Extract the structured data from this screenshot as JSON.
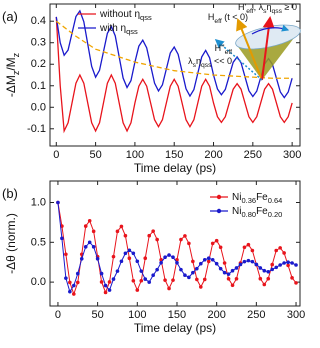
{
  "chart_data": [
    {
      "type": "line",
      "panel_label": "(a)",
      "xlabel": "Time delay (ps)",
      "ylabel": "-ΔMz/Mz",
      "xlim": [
        -8,
        310
      ],
      "ylim": [
        -0.18,
        0.48
      ],
      "xticks": [
        0,
        50,
        100,
        150,
        200,
        250,
        300
      ],
      "yticks": [
        -0.1,
        {
          "value": 0,
          "label": "0.0"
        },
        0.1,
        0.2,
        0.3,
        0.4
      ],
      "legend": "upper center",
      "markers": false,
      "x": [
        0,
        5,
        10,
        15,
        20,
        25,
        30,
        35,
        40,
        45,
        50,
        55,
        60,
        65,
        70,
        75,
        80,
        85,
        90,
        95,
        100,
        105,
        110,
        115,
        120,
        125,
        130,
        135,
        140,
        145,
        150,
        155,
        160,
        165,
        170,
        175,
        180,
        185,
        190,
        195,
        200,
        205,
        210,
        215,
        220,
        225,
        230,
        235,
        240,
        245,
        250,
        255,
        260,
        265,
        270,
        275,
        280,
        285,
        290,
        295,
        300
      ],
      "series": [
        {
          "name": "without ηqss",
          "color": "#e8141c",
          "values": [
            0.42,
            0.1,
            -0.11,
            -0.072,
            0.02,
            0.112,
            0.15,
            0.112,
            0.02,
            -0.072,
            -0.11,
            -0.072,
            0.02,
            0.112,
            0.15,
            0.112,
            0.02,
            -0.072,
            -0.11,
            -0.072,
            0.02,
            0.098,
            0.13,
            0.098,
            0.02,
            -0.058,
            -0.09,
            -0.058,
            0.02,
            0.098,
            0.13,
            0.098,
            0.02,
            -0.058,
            -0.09,
            -0.058,
            0.02,
            0.098,
            0.13,
            0.098,
            0.02,
            -0.044,
            -0.07,
            -0.044,
            0.02,
            0.084,
            0.11,
            0.084,
            0.02,
            -0.044,
            -0.07,
            -0.044,
            0.02,
            0.084,
            0.11,
            0.084,
            0.02,
            -0.044,
            -0.07,
            -0.044,
            0.02
          ]
        },
        {
          "name": "with ηqss",
          "color": "#1a1acc",
          "values": [
            0.42,
            0.3,
            0.242,
            0.266,
            0.344,
            0.422,
            0.448,
            0.398,
            0.294,
            0.19,
            0.14,
            0.172,
            0.258,
            0.344,
            0.376,
            0.332,
            0.234,
            0.136,
            0.092,
            0.124,
            0.21,
            0.284,
            0.312,
            0.276,
            0.194,
            0.112,
            0.076,
            0.104,
            0.178,
            0.252,
            0.28,
            0.246,
            0.166,
            0.086,
            0.052,
            0.082,
            0.158,
            0.234,
            0.264,
            0.23,
            0.15,
            0.085,
            0.058,
            0.083,
            0.146,
            0.209,
            0.234,
            0.207,
            0.142,
            0.077,
            0.05,
            0.075,
            0.138,
            0.201,
            0.226,
            0.199,
            0.135,
            0.071,
            0.045,
            0.071,
            0.135
          ]
        },
        {
          "color": "#f0a500",
          "dashed": true,
          "x": [
            0,
            25,
            50,
            75,
            100,
            125,
            150,
            175,
            200,
            225,
            250,
            275,
            300
          ],
          "values": [
            0.4,
            0.33,
            0.27,
            0.24,
            0.21,
            0.19,
            0.17,
            0.16,
            0.15,
            0.145,
            0.14,
            0.135,
            0.135
          ]
        }
      ],
      "annotations": [
        {
          "text": "Heff (t < 0)",
          "color": "#e39a00"
        },
        {
          "text": "H'eff, λsηqss ≥ 0",
          "color": "#e8141c"
        },
        {
          "text": "H''eff",
          "color": "#1e8fd0"
        },
        {
          "text": "λsηqss << 0",
          "color": "#1e8fd0"
        }
      ]
    },
    {
      "type": "line",
      "panel_label": "(b)",
      "xlabel": "Time delay (ps)",
      "ylabel": "-Δθ (norm.)",
      "xlim": [
        -10,
        305
      ],
      "ylim": [
        -0.3,
        1.27
      ],
      "xticks": [
        0,
        50,
        100,
        150,
        200,
        250,
        300
      ],
      "yticks": [
        {
          "value": 0,
          "label": "0.0"
        },
        0.5,
        {
          "value": 1,
          "label": "1.0"
        }
      ],
      "legend": "upper right",
      "markers": true,
      "x": [
        0,
        5,
        10,
        15,
        20,
        25,
        30,
        35,
        40,
        45,
        50,
        55,
        60,
        65,
        70,
        75,
        80,
        85,
        90,
        95,
        100,
        105,
        110,
        115,
        120,
        125,
        130,
        135,
        140,
        145,
        150,
        155,
        160,
        165,
        170,
        175,
        180,
        185,
        190,
        195,
        200,
        205,
        210,
        215,
        220,
        225,
        230,
        235,
        240,
        245,
        250,
        255,
        260,
        265,
        270,
        275,
        280,
        285,
        290,
        295,
        300
      ],
      "series": [
        {
          "name": "Ni0.36Fe0.64",
          "color": "#e8141c",
          "values": [
            1.0,
            0.704,
            0.35,
            -0.004,
            -0.15,
            -0.004,
            0.35,
            0.704,
            0.77,
            0.638,
            0.32,
            0.002,
            -0.13,
            0.002,
            0.32,
            0.638,
            0.7,
            0.583,
            0.3,
            0.017,
            -0.1,
            0.017,
            0.3,
            0.583,
            0.64,
            0.535,
            0.28,
            0.025,
            -0.08,
            0.025,
            0.28,
            0.535,
            0.58,
            0.486,
            0.26,
            0.034,
            -0.06,
            0.034,
            0.26,
            0.486,
            0.52,
            0.438,
            0.24,
            0.042,
            -0.04,
            0.042,
            0.24,
            0.438,
            0.47,
            0.397,
            0.22,
            0.043,
            -0.03,
            0.043,
            0.22,
            0.397,
            0.43,
            0.366,
            0.21,
            0.054,
            -0.01
          ]
        },
        {
          "name": "Ni0.80Fe0.20",
          "color": "#1a1acc",
          "values": [
            1.0,
            0.55,
            0.05,
            -0.12,
            -0.043,
            0.107,
            0.293,
            0.443,
            0.5,
            0.443,
            0.293,
            0.107,
            -0.043,
            -0.1,
            0.038,
            0.138,
            0.262,
            0.362,
            0.4,
            0.362,
            0.262,
            0.138,
            0.038,
            0,
            0.087,
            0.157,
            0.243,
            0.313,
            0.34,
            0.313,
            0.243,
            0.157,
            0.087,
            0.06,
            0.119,
            0.169,
            0.231,
            0.281,
            0.3,
            0.281,
            0.231,
            0.169,
            0.119,
            0.1,
            0.143,
            0.178,
            0.222,
            0.257,
            0.27,
            0.257,
            0.222,
            0.178,
            0.143,
            0.13,
            0.16,
            0.185,
            0.215,
            0.24,
            0.25,
            0.24,
            0.215
          ]
        }
      ]
    }
  ]
}
